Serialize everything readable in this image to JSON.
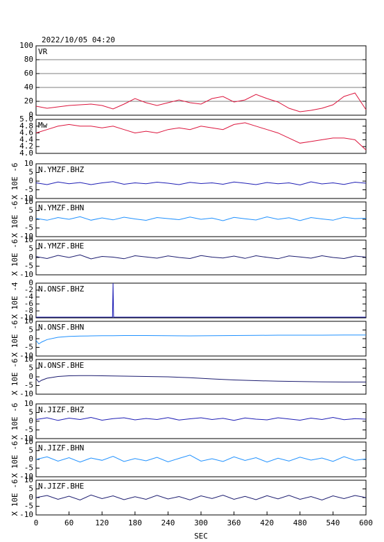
{
  "chart_data": [
    {
      "type": "line",
      "title": "2022/10/05 04:20",
      "label": "VR",
      "grid": true,
      "x": [
        0,
        20,
        40,
        60,
        80,
        100,
        120,
        140,
        160,
        180,
        200,
        220,
        240,
        260,
        280,
        300,
        320,
        340,
        360,
        380,
        400,
        420,
        440,
        460,
        480,
        500,
        520,
        540,
        560,
        580,
        600
      ],
      "series": [
        {
          "name": "VR",
          "color": "#dc143c",
          "values": [
            13,
            10,
            12,
            14,
            15,
            16,
            14,
            9,
            16,
            24,
            18,
            14,
            18,
            22,
            18,
            16,
            24,
            27,
            19,
            22,
            30,
            24,
            19,
            10,
            5,
            7,
            10,
            15,
            27,
            32,
            8
          ]
        }
      ],
      "xlim": [
        0,
        600
      ],
      "ylim": [
        0,
        100
      ],
      "yticks": [
        0,
        20,
        40,
        60,
        80,
        100
      ]
    },
    {
      "type": "line",
      "label": "Mw",
      "grid": false,
      "x": [
        0,
        20,
        40,
        60,
        80,
        100,
        120,
        140,
        160,
        180,
        200,
        220,
        240,
        260,
        280,
        300,
        320,
        340,
        360,
        380,
        400,
        420,
        440,
        460,
        480,
        500,
        520,
        540,
        560,
        580,
        600
      ],
      "series": [
        {
          "name": "Mw",
          "color": "#dc143c",
          "values": [
            4.6,
            4.7,
            4.8,
            4.85,
            4.8,
            4.8,
            4.75,
            4.8,
            4.7,
            4.6,
            4.65,
            4.6,
            4.7,
            4.75,
            4.7,
            4.8,
            4.75,
            4.7,
            4.85,
            4.9,
            4.8,
            4.7,
            4.6,
            4.45,
            4.3,
            4.35,
            4.4,
            4.45,
            4.45,
            4.4,
            4.1
          ]
        }
      ],
      "xlim": [
        0,
        600
      ],
      "ylim": [
        4,
        5
      ],
      "yticks": [
        {
          "value": 4,
          "label": "4.0"
        },
        4.2,
        4.4,
        4.6,
        4.8,
        {
          "value": 5,
          "label": "5.0"
        }
      ]
    },
    {
      "type": "line",
      "label": "N.YMZF.BHZ",
      "ylabel": "X 10E -6",
      "x": [
        0,
        20,
        40,
        60,
        80,
        100,
        120,
        140,
        160,
        180,
        200,
        220,
        240,
        260,
        280,
        300,
        320,
        340,
        360,
        380,
        400,
        420,
        440,
        460,
        480,
        500,
        520,
        540,
        560,
        580,
        600
      ],
      "series": [
        {
          "name": "N.YMZF.BHZ",
          "color": "#1c1cb4",
          "values": [
            -1,
            -2,
            -0.5,
            -1.5,
            -0.8,
            -2,
            -1,
            -0.3,
            -1.8,
            -1,
            -1.5,
            -0.6,
            -1.2,
            -2,
            -0.7,
            -1.4,
            -1,
            -1.8,
            -0.5,
            -1.2,
            -2,
            -0.8,
            -1.5,
            -1,
            -2.2,
            -0.4,
            -1.6,
            -1,
            -1.9,
            -0.6,
            -1.2
          ]
        }
      ],
      "xlim": [
        0,
        600
      ],
      "ylim": [
        -10,
        10
      ],
      "yticks": [
        -10,
        -5,
        0,
        5,
        10
      ]
    },
    {
      "type": "line",
      "label": "N.YMZF.BHN",
      "ylabel": "X 10E -6",
      "x": [
        0,
        20,
        40,
        60,
        80,
        100,
        120,
        140,
        160,
        180,
        200,
        220,
        240,
        260,
        280,
        300,
        320,
        340,
        360,
        380,
        400,
        420,
        440,
        460,
        480,
        500,
        520,
        540,
        560,
        580,
        600
      ],
      "series": [
        {
          "name": "N.YMZF.BHN",
          "color": "#1e90ff",
          "values": [
            0.5,
            -0.5,
            1,
            0,
            1.5,
            -0.5,
            0.8,
            -0.3,
            1.2,
            0.2,
            -0.6,
            1,
            0.4,
            -0.2,
            1.3,
            0,
            0.7,
            -0.8,
            1.1,
            0.3,
            -0.4,
            1.4,
            0,
            0.9,
            -0.7,
            1,
            0.2,
            -0.5,
            1.2,
            0.4,
            0.6
          ]
        }
      ],
      "xlim": [
        0,
        600
      ],
      "ylim": [
        -10,
        10
      ],
      "yticks": [
        -10,
        -5,
        0,
        5,
        10
      ]
    },
    {
      "type": "line",
      "label": "N.YMZF.BHE",
      "ylabel": "X 10E -6",
      "x": [
        0,
        20,
        40,
        60,
        80,
        100,
        120,
        140,
        160,
        180,
        200,
        220,
        240,
        260,
        280,
        300,
        320,
        340,
        360,
        380,
        400,
        420,
        440,
        460,
        480,
        500,
        520,
        540,
        560,
        580,
        600
      ],
      "series": [
        {
          "name": "N.YMZF.BHE",
          "color": "#1a1a6e",
          "values": [
            0.5,
            -0.6,
            1.2,
            0,
            1.5,
            -0.8,
            0.6,
            0.2,
            -0.7,
            1,
            0.3,
            -0.4,
            0.9,
            0,
            -0.6,
            1.1,
            0.2,
            -0.3,
            0.8,
            -0.5,
            1,
            0.1,
            -0.7,
            0.9,
            0.3,
            -0.4,
            1,
            0,
            -0.6,
            0.8,
            0.2
          ]
        }
      ],
      "xlim": [
        0,
        600
      ],
      "ylim": [
        -10,
        10
      ],
      "yticks": [
        -10,
        -5,
        0,
        5,
        10
      ]
    },
    {
      "type": "line",
      "label": "N.ONSF.BHZ",
      "ylabel": "X 10E -4",
      "x": [
        0,
        139,
        140,
        141,
        600
      ],
      "series": [
        {
          "name": "N.ONSF.BHZ",
          "color": "#1c1cb4",
          "values": [
            -9.8,
            -9.8,
            0,
            -9.8,
            -9.8
          ]
        }
      ],
      "xlim": [
        0,
        600
      ],
      "ylim": [
        -10,
        0
      ],
      "yticks": [
        -10,
        -8,
        -6,
        -4,
        -2,
        0
      ]
    },
    {
      "type": "line",
      "label": "N.ONSF.BHN",
      "ylabel": "X 10E -6",
      "x": [
        0,
        5,
        10,
        20,
        40,
        60,
        80,
        100,
        120,
        140,
        160,
        180,
        200,
        240,
        280,
        320,
        360,
        400,
        440,
        480,
        520,
        560,
        600
      ],
      "series": [
        {
          "name": "N.ONSF.BHN",
          "color": "#1e90ff",
          "values": [
            -1,
            -3,
            -2,
            -0.5,
            0.8,
            1.3,
            1.5,
            1.6,
            1.7,
            1.7,
            1.8,
            1.8,
            1.8,
            1.7,
            1.6,
            1.7,
            1.8,
            1.9,
            2,
            2,
            2,
            2.1,
            2.1
          ]
        }
      ],
      "xlim": [
        0,
        600
      ],
      "ylim": [
        -10,
        10
      ],
      "yticks": [
        -10,
        -5,
        0,
        5,
        10
      ]
    },
    {
      "type": "line",
      "label": "N.ONSF.BHE",
      "ylabel": "X 10E -6",
      "x": [
        0,
        5,
        10,
        20,
        40,
        60,
        80,
        100,
        120,
        140,
        160,
        180,
        200,
        240,
        280,
        320,
        360,
        400,
        440,
        480,
        520,
        560,
        600
      ],
      "series": [
        {
          "name": "N.ONSF.BHE",
          "color": "#1a1a6e",
          "values": [
            -1,
            -3,
            -2,
            -0.8,
            0.2,
            0.6,
            0.7,
            0.7,
            0.6,
            0.5,
            0.4,
            0.3,
            0.2,
            0,
            -0.5,
            -1.2,
            -1.8,
            -2.2,
            -2.5,
            -2.7,
            -2.9,
            -3,
            -3
          ]
        }
      ],
      "xlim": [
        0,
        600
      ],
      "ylim": [
        -10,
        10
      ],
      "yticks": [
        -10,
        -5,
        0,
        5,
        10
      ]
    },
    {
      "type": "line",
      "label": "N.JIZF.BHZ",
      "ylabel": "X 10E -6",
      "x": [
        0,
        20,
        40,
        60,
        80,
        100,
        120,
        140,
        160,
        180,
        200,
        220,
        240,
        260,
        280,
        300,
        320,
        340,
        360,
        380,
        400,
        420,
        440,
        460,
        480,
        500,
        520,
        540,
        560,
        580,
        600
      ],
      "series": [
        {
          "name": "N.JIZF.BHZ",
          "color": "#1c1cb4",
          "values": [
            1,
            2,
            0.5,
            1.8,
            1,
            2.2,
            0.6,
            1.5,
            2,
            0.8,
            1.6,
            1,
            2.1,
            0.7,
            1.4,
            2,
            1,
            1.7,
            0.5,
            1.9,
            1.2,
            0.8,
            2,
            1.3,
            0.6,
            1.8,
            1,
            2.2,
            0.9,
            1.5,
            1.2
          ]
        }
      ],
      "xlim": [
        0,
        600
      ],
      "ylim": [
        -10,
        10
      ],
      "yticks": [
        -10,
        -5,
        0,
        5,
        10
      ]
    },
    {
      "type": "line",
      "label": "N.JIZF.BHN",
      "ylabel": "X 10E -6",
      "x": [
        0,
        20,
        40,
        60,
        80,
        100,
        120,
        140,
        160,
        180,
        200,
        220,
        240,
        260,
        280,
        300,
        320,
        340,
        360,
        380,
        400,
        420,
        440,
        460,
        480,
        500,
        520,
        540,
        560,
        580,
        600
      ],
      "series": [
        {
          "name": "N.JIZF.BHN",
          "color": "#1e90ff",
          "values": [
            0,
            1.5,
            -1,
            1,
            -1.5,
            0.8,
            -0.5,
            1.8,
            -1.2,
            0.5,
            -0.8,
            1.2,
            -1.4,
            0.6,
            2.5,
            -1,
            0.4,
            -1.2,
            1.5,
            -0.6,
            1,
            -1.5,
            0.7,
            -0.9,
            1.3,
            -0.4,
            0.8,
            -1.1,
            1.6,
            -0.5,
            0.3
          ]
        }
      ],
      "xlim": [
        0,
        600
      ],
      "ylim": [
        -10,
        10
      ],
      "yticks": [
        -10,
        -5,
        0,
        5,
        10
      ]
    },
    {
      "type": "line",
      "label": "N.JIZF.BHE",
      "ylabel": "X 10E -6",
      "xlabel": "SEC",
      "x": [
        0,
        20,
        40,
        60,
        80,
        100,
        120,
        140,
        160,
        180,
        200,
        220,
        240,
        260,
        280,
        300,
        320,
        340,
        360,
        380,
        400,
        420,
        440,
        460,
        480,
        500,
        520,
        540,
        560,
        580,
        600
      ],
      "series": [
        {
          "name": "N.JIZF.BHE",
          "color": "#1a1a6e",
          "values": [
            0,
            1.2,
            -1,
            0.8,
            -1.4,
            1.5,
            -0.6,
            1,
            -1.2,
            0.5,
            -1,
            1.3,
            -0.8,
            0.6,
            -1.3,
            1,
            -0.5,
            1.4,
            -1,
            0.7,
            -1.2,
            1.1,
            -0.7,
            1.3,
            -1,
            0.6,
            -1.4,
            1,
            -0.6,
            1.2,
            0
          ]
        }
      ],
      "xlim": [
        0,
        600
      ],
      "ylim": [
        -10,
        10
      ],
      "xticks": [
        0,
        60,
        120,
        180,
        240,
        300,
        360,
        420,
        480,
        540,
        600
      ],
      "yticks": [
        -10,
        -5,
        0,
        5,
        10
      ]
    }
  ]
}
